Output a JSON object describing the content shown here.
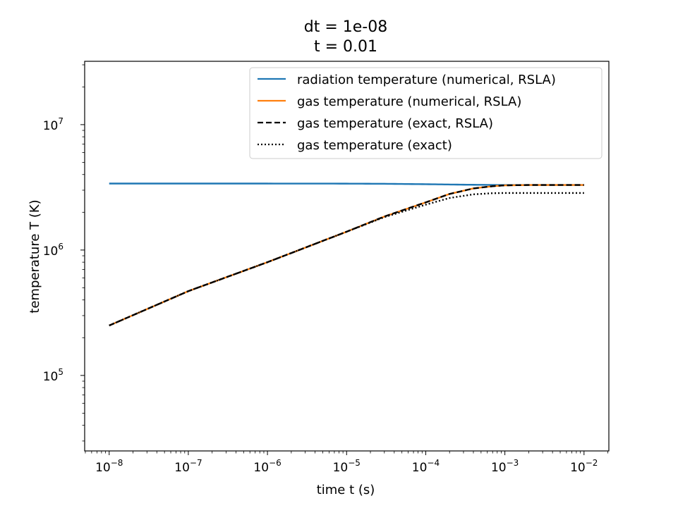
{
  "chart_data": {
    "type": "line",
    "title_lines": [
      "dt = 1e-08",
      "t = 0.01"
    ],
    "xlabel": "time t (s)",
    "ylabel": "temperature T (K)",
    "xscale": "log",
    "yscale": "log",
    "xlim": [
      4.9e-09,
      0.0206
    ],
    "ylim": [
      25000,
      32000000
    ],
    "xticks": [
      {
        "value": 1e-08,
        "base": "10",
        "exp": "−8"
      },
      {
        "value": 1e-07,
        "base": "10",
        "exp": "−7"
      },
      {
        "value": 1e-06,
        "base": "10",
        "exp": "−6"
      },
      {
        "value": 1e-05,
        "base": "10",
        "exp": "−5"
      },
      {
        "value": 0.0001,
        "base": "10",
        "exp": "−4"
      },
      {
        "value": 0.001,
        "base": "10",
        "exp": "−3"
      },
      {
        "value": 0.01,
        "base": "10",
        "exp": "−2"
      }
    ],
    "yticks": [
      {
        "value": 100000,
        "base": "10",
        "exp": "5"
      },
      {
        "value": 1000000,
        "base": "10",
        "exp": "6"
      },
      {
        "value": 10000000,
        "base": "10",
        "exp": "7"
      }
    ],
    "grid": false,
    "legend_position": "top-right",
    "series": [
      {
        "name": "radiation temperature (numerical, RSLA)",
        "color": "#1f77b4",
        "style": "solid",
        "x": [
          1e-08,
          1e-07,
          1e-06,
          1e-05,
          3e-05,
          0.0001,
          0.0003,
          0.001,
          0.003,
          0.01
        ],
        "y": [
          3390000,
          3390000,
          3390000,
          3385000,
          3375000,
          3350000,
          3320000,
          3300000,
          3300000,
          3300000
        ]
      },
      {
        "name": "gas temperature (numerical, RSLA)",
        "color": "#ff7f0e",
        "style": "solid",
        "x": [
          1e-08,
          1e-07,
          1e-06,
          1e-05,
          3e-05,
          0.0001,
          0.0002,
          0.0004,
          0.0007,
          0.001,
          0.002,
          0.004,
          0.01
        ],
        "y": [
          250000,
          470000,
          800000,
          1400000,
          1850000,
          2400000,
          2800000,
          3100000,
          3230000,
          3280000,
          3300000,
          3300000,
          3300000
        ]
      },
      {
        "name": "gas temperature (exact, RSLA)",
        "color": "#000000",
        "style": "dashed",
        "x": [
          1e-08,
          1e-07,
          1e-06,
          1e-05,
          3e-05,
          0.0001,
          0.0002,
          0.0004,
          0.0007,
          0.001,
          0.002,
          0.004,
          0.01
        ],
        "y": [
          250000,
          470000,
          800000,
          1400000,
          1850000,
          2400000,
          2800000,
          3100000,
          3230000,
          3280000,
          3300000,
          3300000,
          3300000
        ]
      },
      {
        "name": "gas temperature (exact)",
        "color": "#000000",
        "style": "dotted",
        "x": [
          1e-08,
          1e-07,
          1e-06,
          1e-05,
          3e-05,
          0.0001,
          0.0002,
          0.0004,
          0.0007,
          0.001,
          0.002,
          0.004,
          0.01
        ],
        "y": [
          250000,
          470000,
          800000,
          1400000,
          1830000,
          2300000,
          2600000,
          2780000,
          2840000,
          2850000,
          2850000,
          2850000,
          2850000
        ]
      }
    ]
  }
}
